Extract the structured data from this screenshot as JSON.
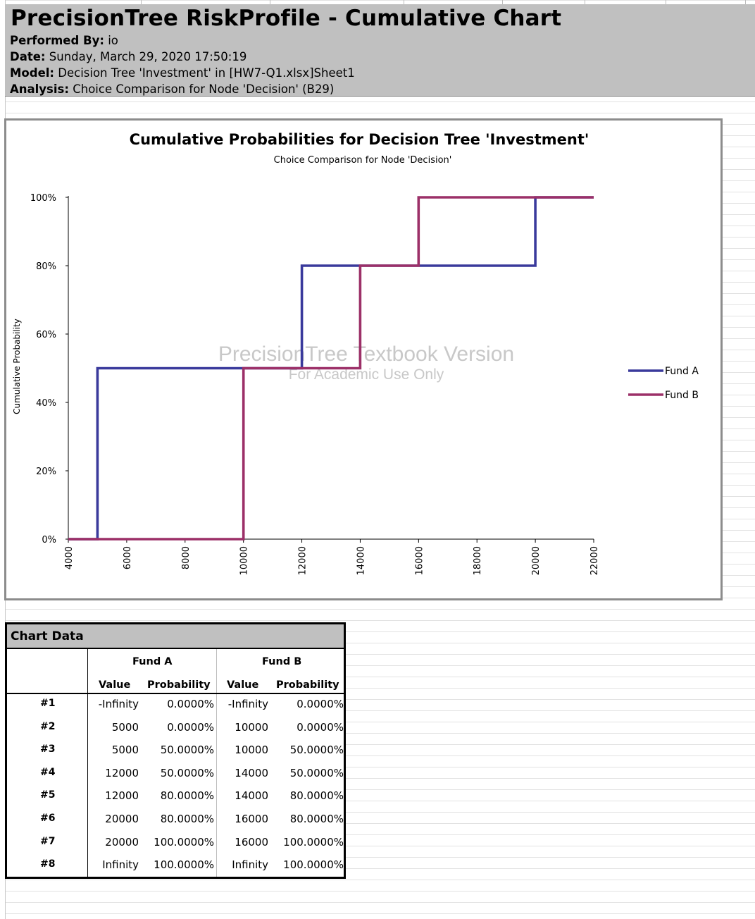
{
  "header": {
    "title": "PrecisionTree RiskProfile - Cumulative Chart",
    "performed_by_label": "Performed By:",
    "performed_by": "io",
    "date_label": "Date:",
    "date": "Sunday, March 29, 2020 17:50:19",
    "model_label": "Model:",
    "model": "Decision Tree 'Investment' in [HW7-Q1.xlsx]Sheet1",
    "analysis_label": "Analysis:",
    "analysis": "Choice Comparison for Node 'Decision' (B29)"
  },
  "watermark": {
    "line1": "PrecisionTree Textbook Version",
    "line2": "For Academic Use Only"
  },
  "chart_data": {
    "type": "line",
    "step": true,
    "title": "Cumulative Probabilities for Decision Tree 'Investment'",
    "subtitle": "Choice Comparison for Node 'Decision'",
    "xlabel": "",
    "ylabel": "Cumulative Probability",
    "xlim": [
      4000,
      22000
    ],
    "ylim": [
      0,
      1
    ],
    "x_ticks": [
      "4000",
      "6000",
      "8000",
      "10000",
      "12000",
      "14000",
      "16000",
      "18000",
      "20000",
      "22000"
    ],
    "y_ticks": [
      "0%",
      "20%",
      "40%",
      "60%",
      "80%",
      "100%"
    ],
    "legend_position": "right",
    "series": [
      {
        "name": "Fund A",
        "color": "#3a3a9c",
        "points": [
          [
            4000,
            0
          ],
          [
            5000,
            0
          ],
          [
            5000,
            0.5
          ],
          [
            12000,
            0.5
          ],
          [
            12000,
            0.8
          ],
          [
            20000,
            0.8
          ],
          [
            20000,
            1
          ],
          [
            22000,
            1
          ]
        ]
      },
      {
        "name": "Fund B",
        "color": "#9c3068",
        "points": [
          [
            4000,
            0
          ],
          [
            10000,
            0
          ],
          [
            10000,
            0.5
          ],
          [
            14000,
            0.5
          ],
          [
            14000,
            0.8
          ],
          [
            16000,
            0.8
          ],
          [
            16000,
            1
          ],
          [
            22000,
            1
          ]
        ]
      }
    ]
  },
  "table": {
    "title": "Chart Data",
    "groups": [
      "Fund A",
      "Fund B"
    ],
    "col_headers": [
      "Value",
      "Probability",
      "Value",
      "Probability"
    ],
    "rows": [
      {
        "id": "#1",
        "a_value": "-Infinity",
        "a_prob": "0.0000%",
        "b_value": "-Infinity",
        "b_prob": "0.0000%"
      },
      {
        "id": "#2",
        "a_value": "5000",
        "a_prob": "0.0000%",
        "b_value": "10000",
        "b_prob": "0.0000%"
      },
      {
        "id": "#3",
        "a_value": "5000",
        "a_prob": "50.0000%",
        "b_value": "10000",
        "b_prob": "50.0000%"
      },
      {
        "id": "#4",
        "a_value": "12000",
        "a_prob": "50.0000%",
        "b_value": "14000",
        "b_prob": "50.0000%"
      },
      {
        "id": "#5",
        "a_value": "12000",
        "a_prob": "80.0000%",
        "b_value": "14000",
        "b_prob": "80.0000%"
      },
      {
        "id": "#6",
        "a_value": "20000",
        "a_prob": "80.0000%",
        "b_value": "16000",
        "b_prob": "80.0000%"
      },
      {
        "id": "#7",
        "a_value": "20000",
        "a_prob": "100.0000%",
        "b_value": "16000",
        "b_prob": "100.0000%"
      },
      {
        "id": "#8",
        "a_value": "Infinity",
        "a_prob": "100.0000%",
        "b_value": "Infinity",
        "b_prob": "100.0000%"
      }
    ]
  }
}
